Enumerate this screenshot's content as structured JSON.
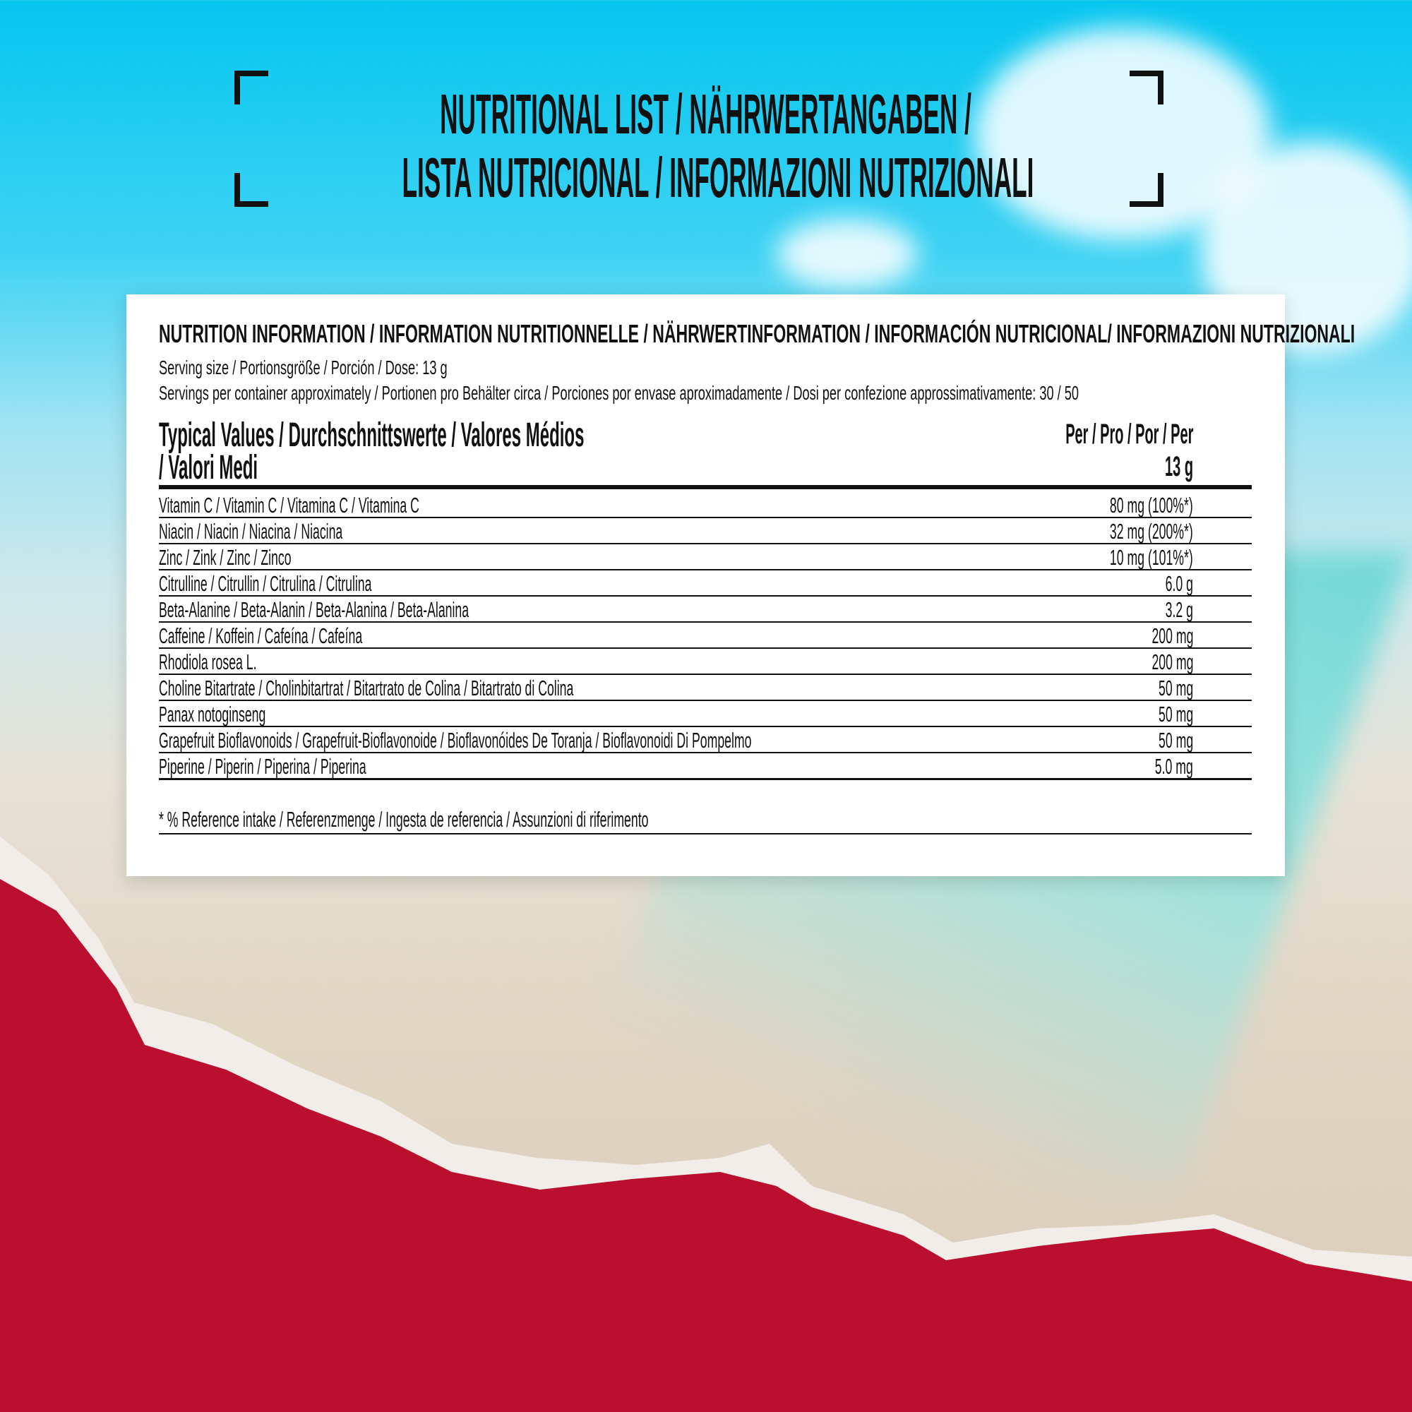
{
  "title": {
    "line1": "NUTRITIONAL LIST / NÄHRWERTANGABEN /",
    "line2": "LISTA NUTRICIONAL / INFORMAZIONI NUTRIZIONALI"
  },
  "card": {
    "header": "NUTRITION INFORMATION / INFORMATION NUTRITIONNELLE / NÄHRWERTINFORMATION / INFORMACIÓN NUTRICIONAL/ INFORMAZIONI NUTRIZIONALI",
    "serving_size": "Serving size / Portionsgröße / Porción / Dose: 13 g",
    "servings_per_container": "Servings per container approximately / Portionen pro Behälter circa / Porciones por envase aproximadamente / Dosi per confezione approssimativamente: 30 / 50",
    "typical_values_line1": "Typical Values / Durchschnittswerte / Valores Médios",
    "typical_values_line2": "/ Valori Medi",
    "per_label": "Per / Pro / Por / Per",
    "per_amount": "13 g",
    "rows": [
      {
        "name": "Vitamin C / Vitamin C / Vitamina C / Vitamina C",
        "value": "80 mg (100%*)"
      },
      {
        "name": "Niacin / Niacin / Niacina / Niacina",
        "value": "32 mg (200%*)"
      },
      {
        "name": "Zinc / Zink / Zinc / Zinco",
        "value": "10 mg (101%*)"
      },
      {
        "name": "Citrulline / Citrullin / Citrulina / Citrulina",
        "value": "6.0 g"
      },
      {
        "name": "Beta-Alanine / Beta-Alanin / Beta-Alanina / Beta-Alanina",
        "value": "3.2 g"
      },
      {
        "name": "Caffeine / Koffein / Cafeína / Cafeína",
        "value": "200 mg"
      },
      {
        "name": "Rhodiola rosea L.",
        "value": "200 mg"
      },
      {
        "name": "Choline Bitartrate / Cholinbitartrat / Bitartrato de Colina / Bitartrato di Colina",
        "value": "50 mg"
      },
      {
        "name": "Panax notoginseng",
        "value": "50 mg"
      },
      {
        "name": "Grapefruit Bioflavonoids / Grapefruit-Bioflavonoide / Bioflavonóides De Toranja / Bioflavonoidi Di Pompelmo",
        "value": "50 mg"
      },
      {
        "name": "Piperine / Piperin / Piperina / Piperina",
        "value": "5.0 mg"
      }
    ],
    "footnote": "* % Reference intake / Referenzmenge / Ingesta de referencia / Assunzioni di riferimento"
  },
  "colors": {
    "sky": "#05c6ef",
    "red": "#bb0f2f",
    "ink": "#111111"
  }
}
